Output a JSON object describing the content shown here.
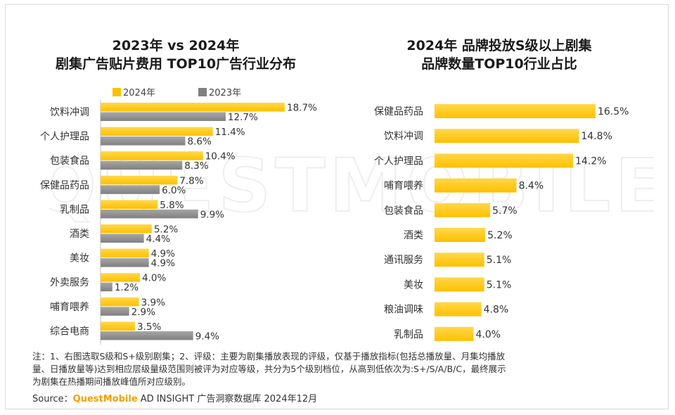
{
  "watermark": "QUESTMOBILE",
  "left_title": [
    "2023年 vs 2024年",
    "剧集广告贴片费用 TOP10广告行业分布"
  ],
  "right_title": [
    "2024年 品牌投放S级以上剧集",
    "品牌数量TOP10行业占比"
  ],
  "legend": {
    "s2024": "2024年",
    "s2023": "2023年"
  },
  "colors": {
    "s2024": "#FFC000",
    "s2024_light": "#FFD84A",
    "s2023": "#808080",
    "s2023_light": "#A6A6A6",
    "label": "#333333"
  },
  "chart_data": [
    {
      "type": "bar",
      "orientation": "horizontal",
      "title": "2023年 vs 2024年 剧集广告贴片费用 TOP10广告行业分布",
      "categories": [
        "饮料冲调",
        "个人护理品",
        "包装食品",
        "保健品药品",
        "乳制品",
        "酒类",
        "美妆",
        "外卖服务",
        "哺育喂养",
        "综合电商"
      ],
      "series": [
        {
          "name": "2024年",
          "values": [
            18.7,
            11.4,
            10.4,
            7.8,
            5.8,
            5.2,
            4.9,
            4.0,
            3.9,
            3.5
          ],
          "labels": [
            "18.7%",
            "11.4%",
            "10.4%",
            "7.8%",
            "5.8%",
            "5.2%",
            "4.9%",
            "4.0%",
            "3.9%",
            "3.5%"
          ]
        },
        {
          "name": "2023年",
          "values": [
            12.7,
            8.6,
            8.3,
            6.0,
            9.9,
            4.4,
            4.9,
            1.2,
            2.9,
            9.4
          ],
          "labels": [
            "12.7%",
            "8.6%",
            "8.3%",
            "6.0%",
            "9.9%",
            "4.4%",
            "4.9%",
            "1.2%",
            "2.9%",
            "9.4%"
          ]
        }
      ],
      "legend_position": "top",
      "grid": false
    },
    {
      "type": "bar",
      "orientation": "horizontal",
      "title": "2024年 品牌投放S级以上剧集 品牌数量TOP10行业占比",
      "categories": [
        "保健品药品",
        "饮料冲调",
        "个人护理品",
        "哺育喂养",
        "包装食品",
        "酒类",
        "通讯服务",
        "美妆",
        "粮油调味",
        "乳制品"
      ],
      "values": [
        16.5,
        14.8,
        14.2,
        8.4,
        5.7,
        5.2,
        5.1,
        5.1,
        4.8,
        4.0
      ],
      "labels": [
        "16.5%",
        "14.8%",
        "14.2%",
        "8.4%",
        "5.7%",
        "5.2%",
        "5.1%",
        "5.1%",
        "4.8%",
        "4.0%"
      ],
      "grid": false
    }
  ],
  "note_lines": [
    "注：1、右图选取S级和S+级别剧集；2、评级：主要为剧集播放表现的评级，仅基于播放指标(包括总播放量、月集均播放",
    "量、日播放量等)达到相应层级量级范围则被评为对应等级，共分为5个级别档位，从高到低依次为:S+/S/A/B/C，最终展示",
    "为剧集在热播期间播放峰值所对应级别。"
  ],
  "source": {
    "prefix": "Source：",
    "brand": "QuestMobile",
    "suffix": " AD INSIGHT 广告洞察数据库 2024年12月"
  }
}
